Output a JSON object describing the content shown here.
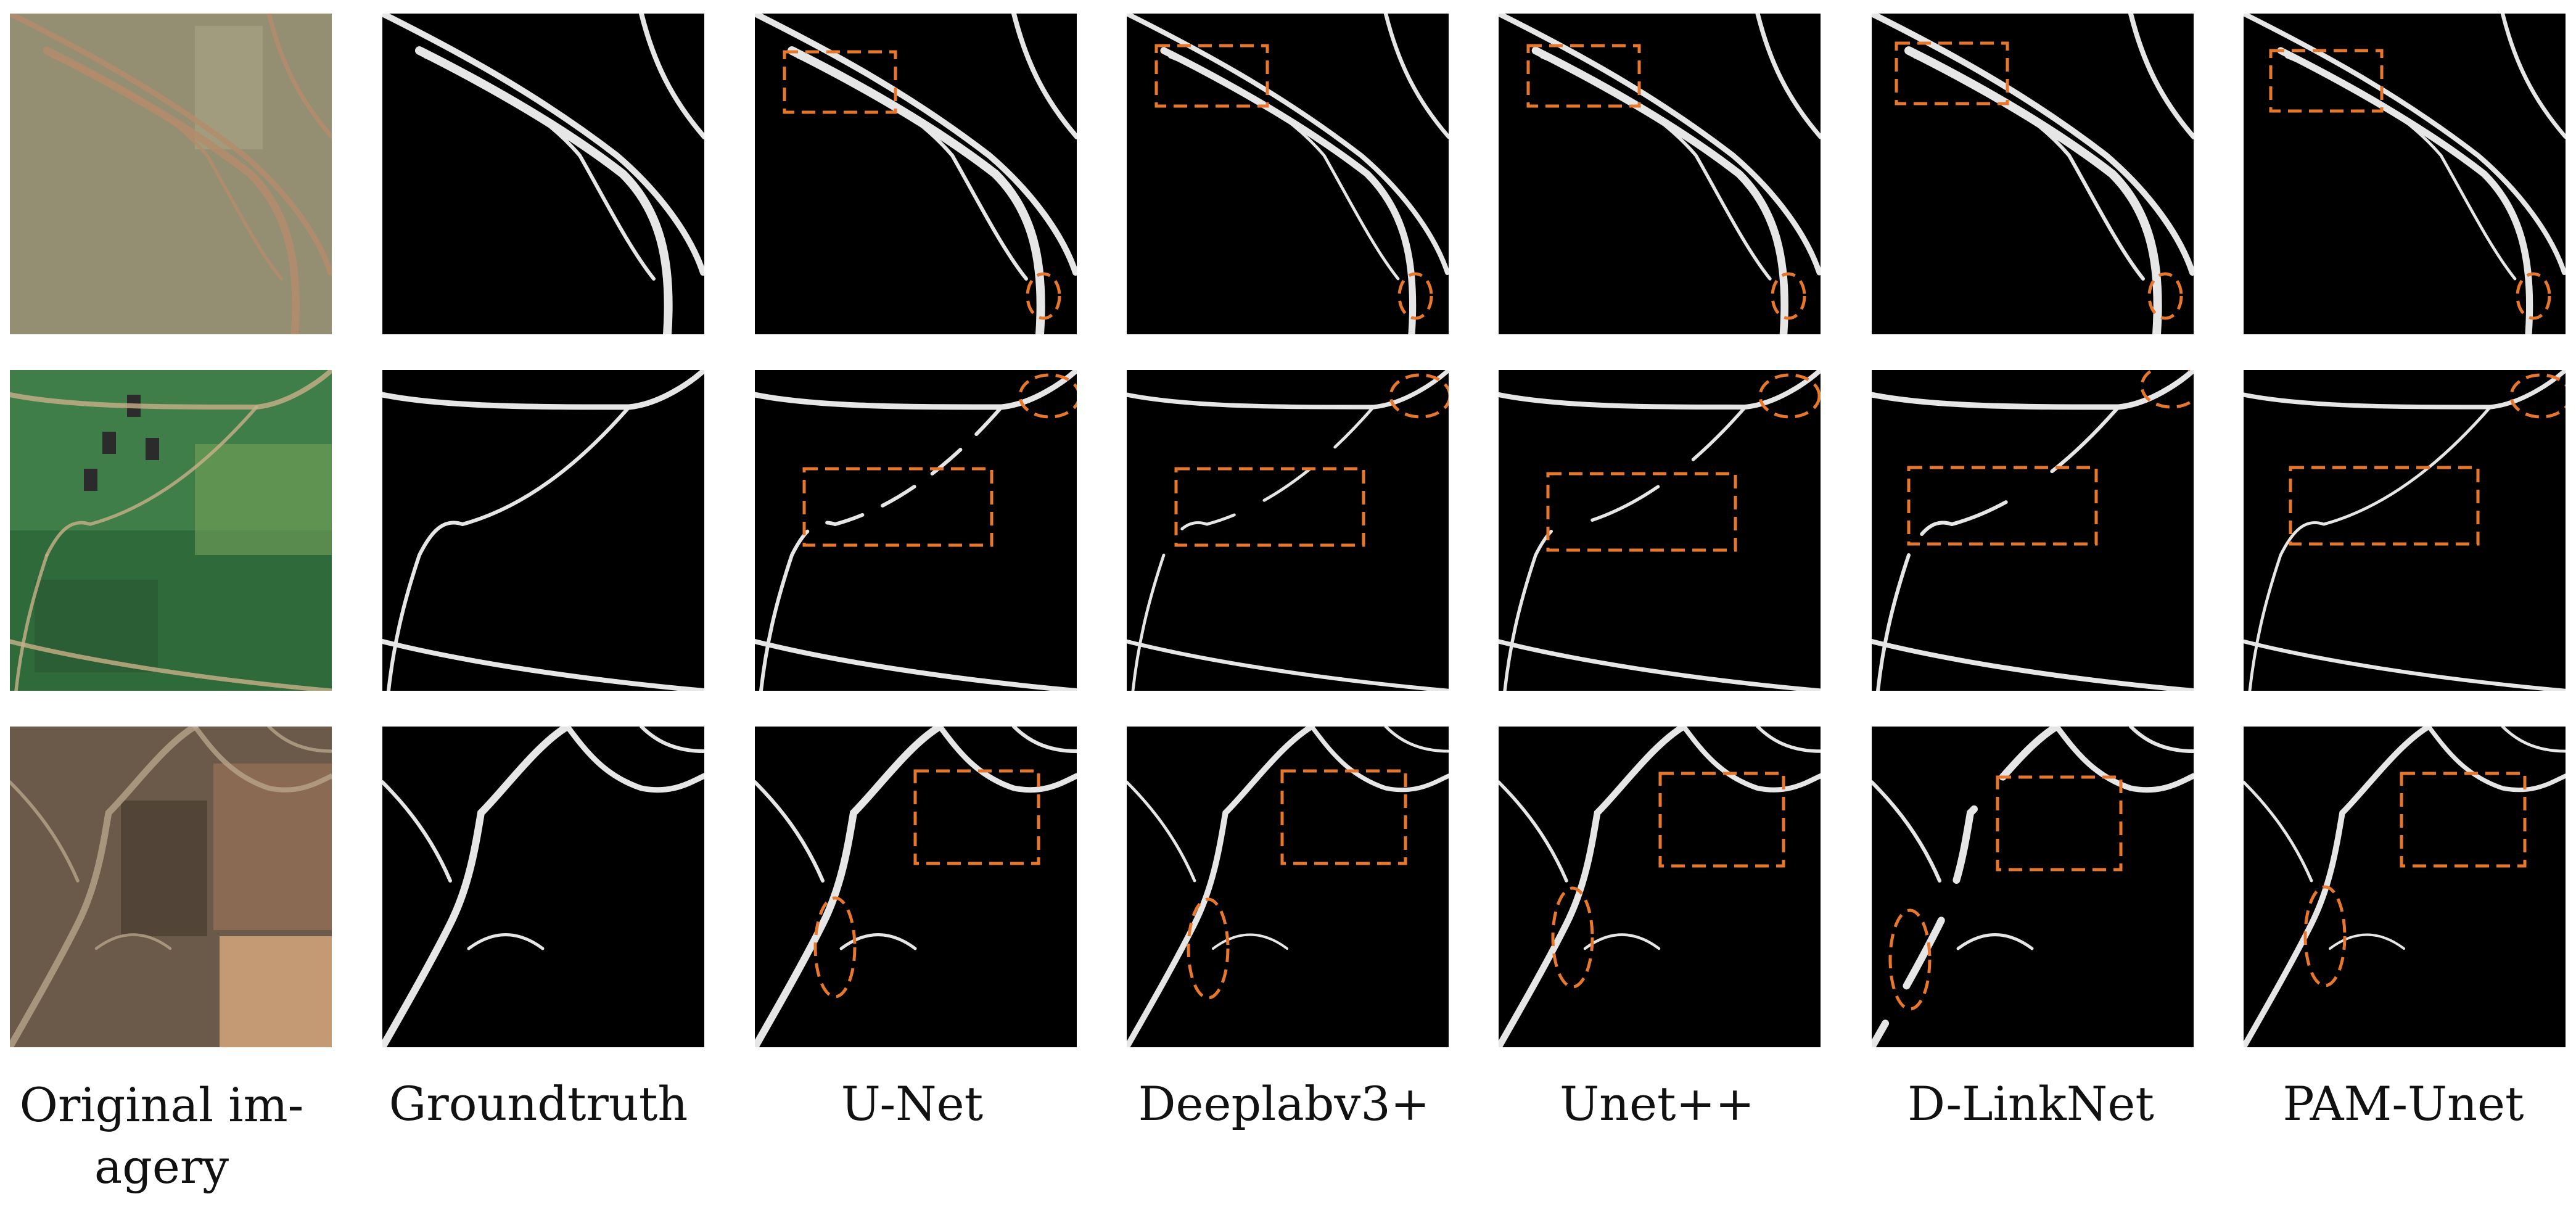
{
  "columns": [
    "Original im-\nagery",
    "Groundtruth",
    "U-Net",
    "Deeplabv3+",
    "Unet++",
    "D-LinkNet",
    "PAM-Unet"
  ],
  "colors": {
    "background": "#ffffff",
    "mask": "#000000",
    "road": "#e6e6e6",
    "highlight": "#e8772e"
  }
}
